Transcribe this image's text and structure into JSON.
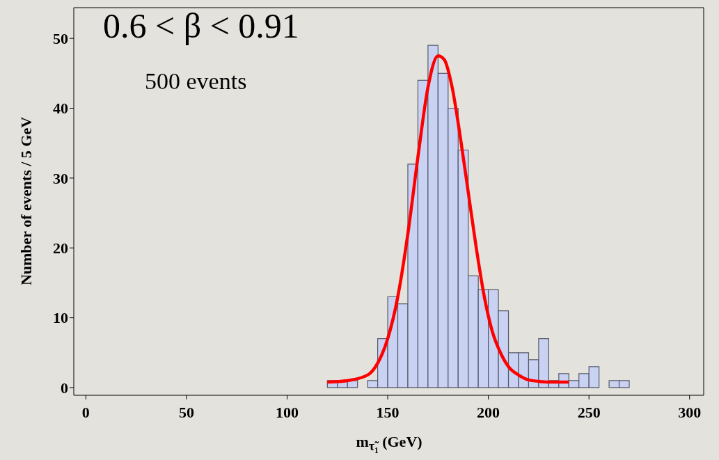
{
  "chart_data": {
    "type": "histogram",
    "annotations": [
      "0.6 < β < 0.91",
      "500 events"
    ],
    "xlabel": "m$_{τ̃₁}$ (GeV)",
    "ylabel": "Number of events / 5 GeV",
    "bins": [
      120,
      125,
      130,
      135,
      140,
      145,
      150,
      155,
      160,
      165,
      170,
      175,
      180,
      185,
      190,
      195,
      200,
      205,
      210,
      215,
      220,
      225,
      230,
      235,
      240,
      245,
      250,
      255,
      260,
      265,
      270
    ],
    "values": [
      1,
      1,
      1,
      0,
      1,
      7,
      13,
      12,
      32,
      44,
      49,
      45,
      40,
      34,
      16,
      14,
      14,
      11,
      5,
      5,
      4,
      7,
      1,
      2,
      1,
      2,
      3,
      0,
      1,
      1
    ],
    "color": "#c9d2f3",
    "series": [
      {
        "type": "line",
        "color": "#ff0000",
        "x": [
          120,
          130,
          140,
          145,
          150,
          155,
          160,
          165,
          170,
          175,
          178,
          182,
          186,
          190,
          194,
          198,
          202,
          206,
          210,
          215,
          220,
          225,
          230,
          240
        ],
        "values": [
          0.8,
          1.0,
          1.8,
          3.5,
          7,
          13,
          22,
          33,
          43,
          47.5,
          47,
          43,
          36,
          28,
          20,
          13,
          8,
          5,
          3,
          1.8,
          1.1,
          0.9,
          0.8,
          0.8
        ]
      }
    ],
    "xlim": [
      -6,
      307
    ],
    "ylim": [
      -1.1,
      54.4
    ],
    "xticks": [
      0,
      50,
      100,
      150,
      200,
      250,
      300
    ],
    "yticks": [
      0,
      10,
      20,
      30,
      40,
      50
    ],
    "grid": false
  }
}
